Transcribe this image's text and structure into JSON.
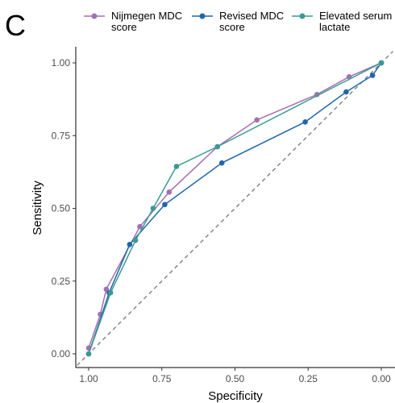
{
  "panel_label": "C",
  "chart_data": {
    "type": "line",
    "title": "",
    "xlabel": "Specificity",
    "ylabel": "Sensitivity",
    "x_reversed": true,
    "xlim": [
      1.0,
      0.0
    ],
    "ylim": [
      0.0,
      1.0
    ],
    "x_ticks": [
      1.0,
      0.75,
      0.5,
      0.25,
      0.0
    ],
    "x_tick_labels": [
      "1.00",
      "0.75",
      "0.50",
      "0.25",
      "0.00"
    ],
    "y_ticks": [
      0.0,
      0.25,
      0.5,
      0.75,
      1.0
    ],
    "y_tick_labels": [
      "0.00",
      "0.25",
      "0.50",
      "0.75",
      "1.00"
    ],
    "grid": false,
    "legend_position": "top",
    "reference_line": {
      "style": "dashed",
      "color": "#7f7f7f",
      "from": [
        1.0,
        0.0
      ],
      "to": [
        0.0,
        1.0
      ]
    },
    "series": [
      {
        "name": "Nijmegen MDC score",
        "color": "#a270b0",
        "points": [
          [
            1.0,
            0.02
          ],
          [
            0.96,
            0.136
          ],
          [
            0.94,
            0.222
          ],
          [
            0.825,
            0.437
          ],
          [
            0.725,
            0.556
          ],
          [
            0.56,
            0.712
          ],
          [
            0.425,
            0.804
          ],
          [
            0.22,
            0.891
          ],
          [
            0.11,
            0.952
          ],
          [
            0.0,
            1.0
          ]
        ]
      },
      {
        "name": "Revised MDC score",
        "color": "#2166ac",
        "points": [
          [
            1.0,
            0.0
          ],
          [
            0.93,
            0.21
          ],
          [
            0.86,
            0.376
          ],
          [
            0.74,
            0.513
          ],
          [
            0.545,
            0.656
          ],
          [
            0.26,
            0.797
          ],
          [
            0.12,
            0.9
          ],
          [
            0.03,
            0.957
          ],
          [
            0.0,
            1.0
          ]
        ]
      },
      {
        "name": "Elevated serum lactate",
        "color": "#3a9a93",
        "points": [
          [
            1.0,
            0.0
          ],
          [
            0.925,
            0.21
          ],
          [
            0.84,
            0.39
          ],
          [
            0.78,
            0.5
          ],
          [
            0.7,
            0.644
          ],
          [
            0.56,
            0.712
          ],
          [
            0.0,
            1.0
          ]
        ]
      }
    ]
  },
  "legend": [
    {
      "line1": "Nijmegen MDC",
      "line2": "score",
      "color": "#a270b0"
    },
    {
      "line1": "Revised MDC",
      "line2": "score",
      "color": "#2166ac"
    },
    {
      "line1": "Elevated serum",
      "line2": "lactate",
      "color": "#3a9a93"
    }
  ]
}
